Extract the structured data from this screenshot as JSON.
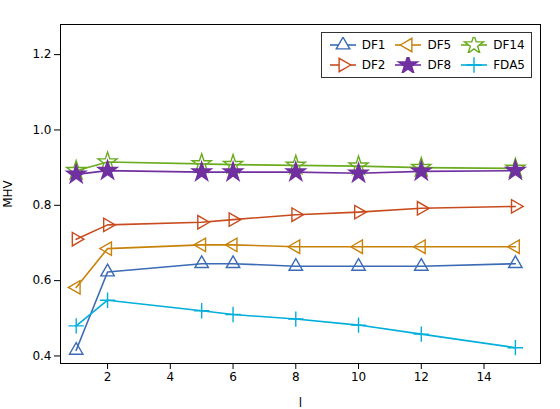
{
  "chart_data": {
    "type": "line",
    "x": [
      1,
      2,
      5,
      6,
      8,
      10,
      12,
      15
    ],
    "series": [
      {
        "name": "DF1",
        "color": "#3B6BB5",
        "marker": "triangle-up",
        "values": [
          0.415,
          0.623,
          0.645,
          0.645,
          0.638,
          0.638,
          0.638,
          0.645
        ]
      },
      {
        "name": "DF5",
        "color": "#C8820A",
        "marker": "triangle-left",
        "values": [
          0.582,
          0.685,
          0.695,
          0.695,
          0.69,
          0.69,
          0.69,
          0.69
        ]
      },
      {
        "name": "DF14",
        "color": "#6AAC1E",
        "marker": "star",
        "values": [
          0.892,
          0.915,
          0.91,
          0.908,
          0.906,
          0.904,
          0.9,
          0.898
        ]
      },
      {
        "name": "DF2",
        "color": "#C84B1E",
        "marker": "triangle-right",
        "values": [
          0.71,
          0.748,
          0.755,
          0.762,
          0.775,
          0.782,
          0.792,
          0.797
        ]
      },
      {
        "name": "DF8",
        "color": "#7030A0",
        "marker": "filled-star",
        "values": [
          0.882,
          0.892,
          0.888,
          0.888,
          0.888,
          0.885,
          0.89,
          0.892
        ]
      },
      {
        "name": "FDA5",
        "color": "#00AEDB",
        "marker": "plus",
        "values": [
          0.48,
          0.548,
          0.52,
          0.51,
          0.498,
          0.482,
          0.458,
          0.422
        ]
      }
    ],
    "xlabel": "l",
    "ylabel": "MHV",
    "xlim": [
      0.5,
      15.8
    ],
    "ylim": [
      0.38,
      1.28
    ],
    "xticks": [
      2,
      4,
      6,
      8,
      10,
      12,
      14
    ],
    "yticks": [
      0.4,
      0.6,
      0.8,
      {
        "value": 1.0,
        "label": "1.0"
      },
      1.2
    ],
    "legend": "upper right",
    "grid": false
  }
}
